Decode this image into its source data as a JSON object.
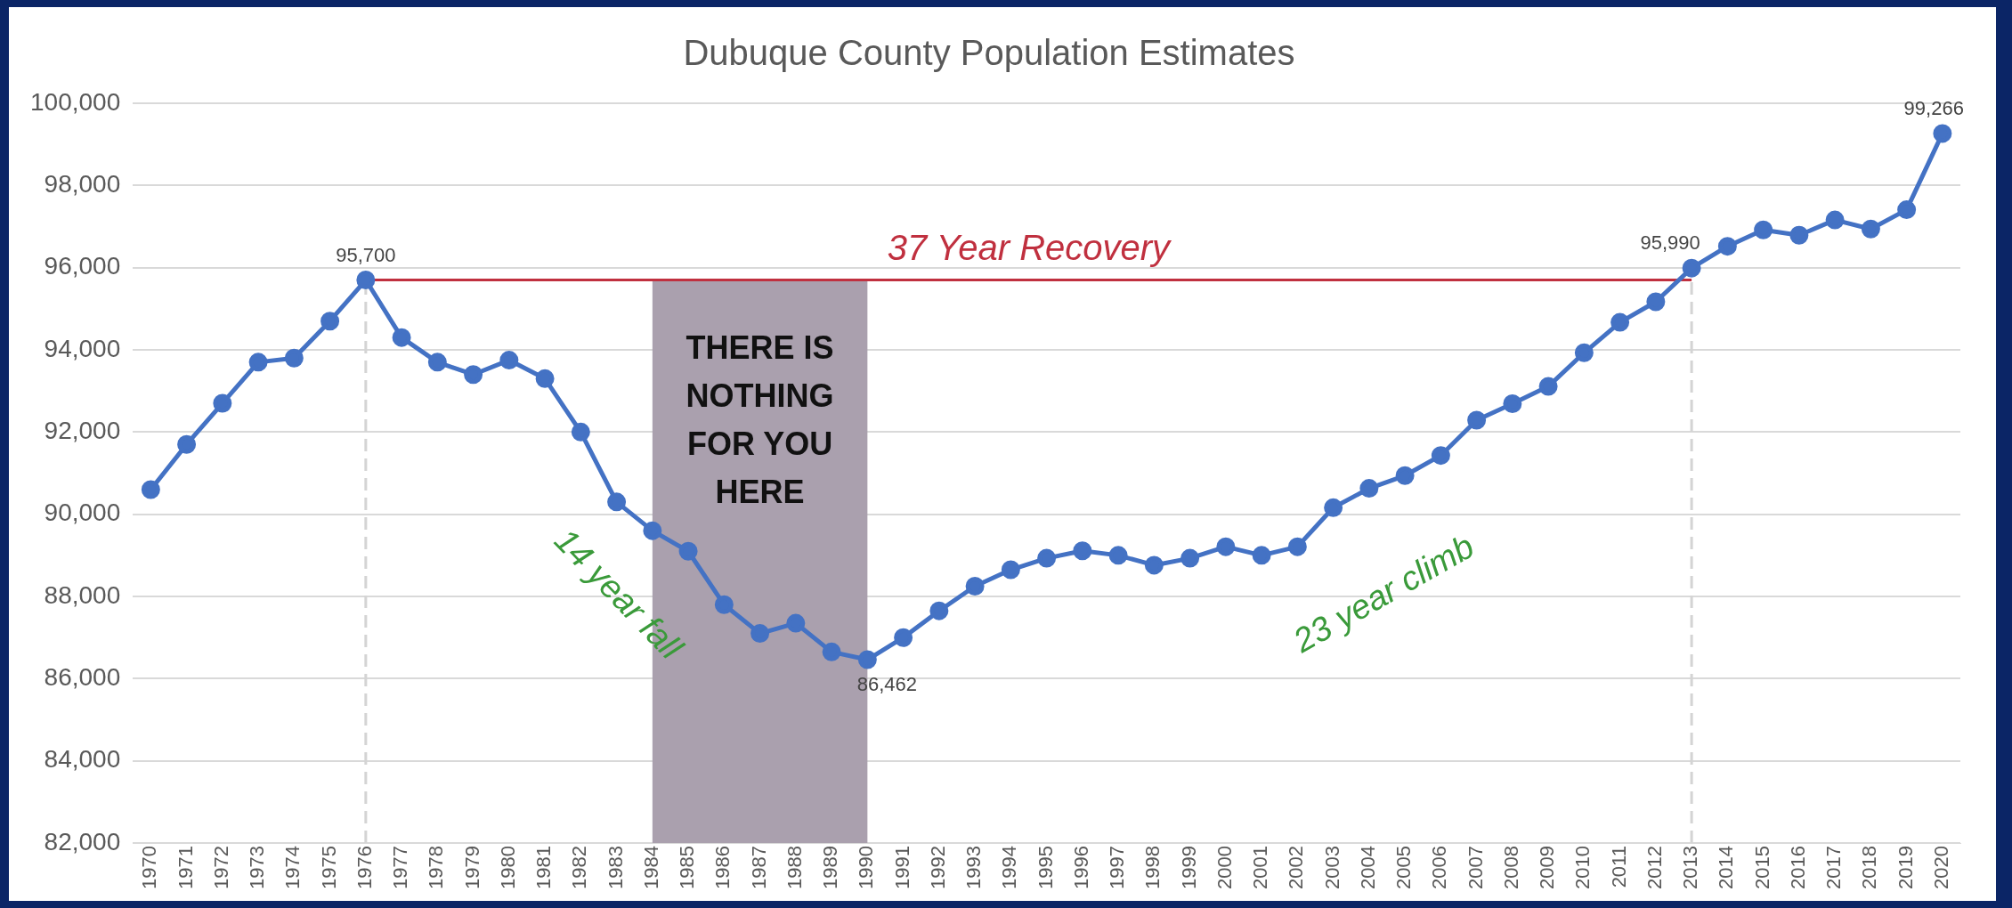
{
  "chart_data": {
    "type": "line",
    "title": "Dubuque County Population Estimates",
    "categories": [
      "1970",
      "1971",
      "1972",
      "1973",
      "1974",
      "1975",
      "1976",
      "1977",
      "1978",
      "1979",
      "1980",
      "1981",
      "1982",
      "1983",
      "1984",
      "1985",
      "1986",
      "1987",
      "1988",
      "1989",
      "1990",
      "1991",
      "1992",
      "1993",
      "1994",
      "1995",
      "1996",
      "1997",
      "1998",
      "1999",
      "2000",
      "2001",
      "2002",
      "2003",
      "2004",
      "2005",
      "2006",
      "2007",
      "2008",
      "2009",
      "2010",
      "2011",
      "2012",
      "2013",
      "2014",
      "2015",
      "2016",
      "2017",
      "2018",
      "2019",
      "2020"
    ],
    "series": [
      {
        "color": "#4472c4",
        "values": [
          90600,
          91700,
          92700,
          93700,
          93800,
          94700,
          95700,
          94300,
          93700,
          93400,
          93750,
          93300,
          92000,
          90300,
          89600,
          89100,
          87800,
          87100,
          87350,
          86650,
          86462,
          87000,
          87650,
          88250,
          88650,
          88930,
          89110,
          89000,
          88760,
          88930,
          89210,
          89000,
          89210,
          90160,
          90630,
          90940,
          91430,
          92290,
          92690,
          93110,
          93930,
          94670,
          95170,
          95990,
          96520,
          96920,
          96790,
          97160,
          96940,
          97410,
          99266
        ],
        "value_labels": [
          null,
          null,
          null,
          null,
          null,
          null,
          "95,700",
          null,
          null,
          null,
          null,
          null,
          null,
          null,
          null,
          null,
          null,
          null,
          null,
          null,
          "86,462",
          null,
          null,
          null,
          null,
          null,
          null,
          null,
          null,
          null,
          null,
          null,
          null,
          null,
          null,
          null,
          null,
          null,
          null,
          null,
          null,
          null,
          null,
          "95,990",
          null,
          null,
          null,
          null,
          null,
          null,
          "99,266"
        ]
      }
    ],
    "ylim": [
      82000,
      100000
    ],
    "yticks": [
      {
        "value": 82000,
        "label": "82,000"
      },
      {
        "value": 84000,
        "label": "84,000"
      },
      {
        "value": 86000,
        "label": "86,000"
      },
      {
        "value": 88000,
        "label": "88,000"
      },
      {
        "value": 90000,
        "label": "90,000"
      },
      {
        "value": 92000,
        "label": "92,000"
      },
      {
        "value": 94000,
        "label": "94,000"
      },
      {
        "value": 96000,
        "label": "96,000"
      },
      {
        "value": 98000,
        "label": "98,000"
      },
      {
        "value": 100000,
        "label": "100,000"
      }
    ],
    "grid": "y",
    "legend": false,
    "marker": "circle",
    "line_style": "solid",
    "ref_lines": [
      {
        "axis": "y",
        "value": 95700,
        "label": "37 Year Recovery",
        "color": "#c0303f",
        "line_style": "solid"
      },
      {
        "axis": "x",
        "value": "1976",
        "color": "#d4d4d4",
        "line_style": "dashed"
      },
      {
        "axis": "x",
        "value": "2013",
        "color": "#d4d4d4",
        "line_style": "dashed"
      }
    ],
    "bands": [
      {
        "axis": "x",
        "from": "1984",
        "to": "1990",
        "label": "THERE IS NOTHING FOR YOU HERE",
        "color": "#aaa0ae"
      }
    ],
    "annotations": [
      "14 year fall",
      "23 year climb"
    ]
  }
}
